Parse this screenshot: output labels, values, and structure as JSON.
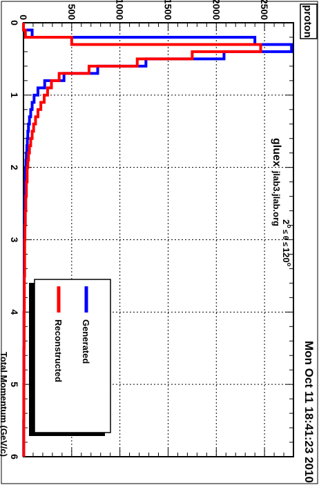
{
  "stamp": "Mon Oct 11 18:41:23 2010",
  "particle_label": "proton",
  "host_line": {
    "main": "gluex",
    "host": "jlab3.jlab.org"
  },
  "angle_label": {
    "lo": "2",
    "lo_unit": "o",
    "relation": "≤ θ ≤",
    "hi": "120",
    "hi_unit": "o"
  },
  "chart_data": {
    "type": "line",
    "xlabel": "Total Momentum (GeV/c)",
    "ylabel": "",
    "xlim": [
      0,
      6
    ],
    "ylim": [
      0,
      2800
    ],
    "grid": true,
    "legend_position": "bottom-right",
    "x_ticks": [
      "0",
      "1",
      "2",
      "3",
      "4",
      "5",
      "6"
    ],
    "y_ticks": [
      "0",
      "500",
      "1000",
      "1500",
      "2000",
      "2500"
    ],
    "bin_edges": [
      0,
      0.1,
      0.2,
      0.3,
      0.4,
      0.5,
      0.6,
      0.7,
      0.8,
      0.9,
      1.0,
      1.1,
      1.2,
      1.3,
      1.4,
      1.5,
      1.6,
      1.7,
      1.8,
      1.9,
      2.0,
      2.2,
      2.4,
      2.6,
      2.8,
      3.0,
      3.5,
      4.0,
      4.5,
      5.0,
      5.5,
      6.0
    ],
    "series": [
      {
        "name": "Generated",
        "color": "#0000ff",
        "values": [
          0,
          90,
          2400,
          2780,
          2080,
          1270,
          770,
          420,
          220,
          150,
          110,
          90,
          75,
          62,
          52,
          45,
          40,
          35,
          30,
          26,
          22,
          18,
          15,
          13,
          11,
          9,
          7,
          5,
          4,
          3,
          2
        ]
      },
      {
        "name": "Reconstructed",
        "color": "#ff0000",
        "values": [
          0,
          20,
          500,
          2460,
          1750,
          1180,
          680,
          370,
          290,
          250,
          215,
          180,
          150,
          125,
          105,
          90,
          75,
          62,
          52,
          45,
          38,
          30,
          24,
          19,
          15,
          12,
          9,
          7,
          5,
          4,
          3
        ]
      }
    ]
  }
}
